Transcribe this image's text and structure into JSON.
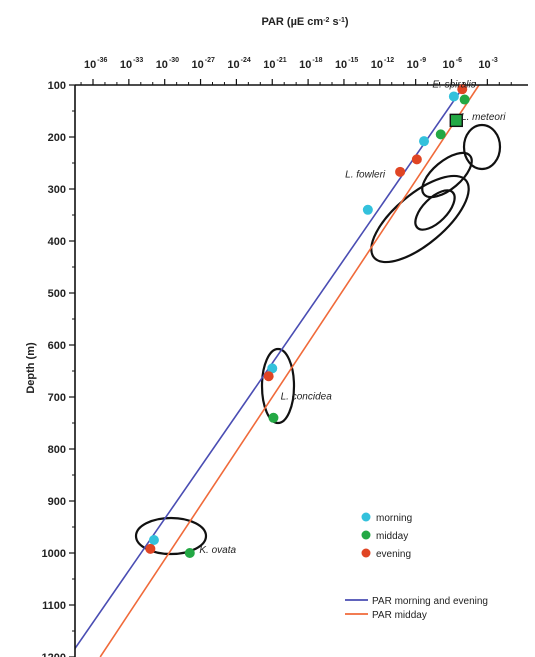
{
  "chart_data": {
    "type": "scatter",
    "x_axis": {
      "title": "PAR (µE cm⁻² s⁻¹)",
      "scale": "log",
      "position": "top",
      "range_exponent": [
        -38,
        -1
      ],
      "ticks": [
        {
          "base": "10",
          "exp": "-36",
          "e": -36
        },
        {
          "base": "10",
          "exp": "-33",
          "e": -33
        },
        {
          "base": "10",
          "exp": "-30",
          "e": -30
        },
        {
          "base": "10",
          "exp": "-27",
          "e": -27
        },
        {
          "base": "10",
          "exp": "-24",
          "e": -24
        },
        {
          "base": "10",
          "exp": "-21",
          "e": -21
        },
        {
          "base": "10",
          "exp": "-18",
          "e": -18
        },
        {
          "base": "10",
          "exp": "-15",
          "e": -15
        },
        {
          "base": "10",
          "exp": "-12",
          "e": -12
        },
        {
          "base": "10",
          "exp": "-9",
          "e": -9
        },
        {
          "base": "10",
          "exp": "-6",
          "e": -6
        },
        {
          "base": "10",
          "exp": "-3",
          "e": -3
        }
      ]
    },
    "y_axis": {
      "title": "Depth (m)",
      "inverted": true,
      "range": [
        100,
        1200
      ],
      "ticks": [
        {
          "label": "100",
          "v": 100
        },
        {
          "label": "200",
          "v": 200
        },
        {
          "label": "300",
          "v": 300
        },
        {
          "label": "400",
          "v": 400
        },
        {
          "label": "500",
          "v": 500
        },
        {
          "label": "600",
          "v": 600
        },
        {
          "label": "700",
          "v": 700
        },
        {
          "label": "800",
          "v": 800
        },
        {
          "label": "900",
          "v": 900
        },
        {
          "label": "1000",
          "v": 1000
        },
        {
          "label": "1100",
          "v": 1100
        },
        {
          "label": "1200",
          "v": 1200
        }
      ]
    },
    "lines": [
      {
        "name": "PAR  morning and evening",
        "color": "#4a4db3",
        "points": [
          [
            -4.9,
            100
          ],
          [
            -38,
            1200
          ]
        ]
      },
      {
        "name": "PAR  midday",
        "color": "#f06a3a",
        "points": [
          [
            -3.7,
            100
          ],
          [
            -35.4,
            1200
          ]
        ]
      }
    ],
    "series": [
      {
        "name": "morning",
        "color": "#33c1dc",
        "points": [
          {
            "log_par": -5.8,
            "depth": 122
          },
          {
            "log_par": -8.3,
            "depth": 208
          },
          {
            "log_par": -13.0,
            "depth": 340
          },
          {
            "log_par": -21.0,
            "depth": 645
          },
          {
            "log_par": -30.9,
            "depth": 975
          }
        ]
      },
      {
        "name": "midday",
        "color": "#23a844",
        "points": [
          {
            "log_par": -4.9,
            "depth": 128
          },
          {
            "log_par": -5.6,
            "depth": 168,
            "marker": "square"
          },
          {
            "log_par": -6.9,
            "depth": 195
          },
          {
            "log_par": -20.9,
            "depth": 740
          },
          {
            "log_par": -27.9,
            "depth": 1000
          }
        ]
      },
      {
        "name": "evening",
        "color": "#e04524",
        "points": [
          {
            "log_par": -5.1,
            "depth": 108
          },
          {
            "log_par": -8.9,
            "depth": 243
          },
          {
            "log_par": -10.3,
            "depth": 267
          },
          {
            "log_par": -21.3,
            "depth": 660
          },
          {
            "log_par": -31.2,
            "depth": 992
          }
        ]
      }
    ],
    "annotations": [
      {
        "text": "E. spiralis",
        "log_par": -7.6,
        "depth": 97
      },
      {
        "text": "L. meteori",
        "log_par": -5.2,
        "depth": 160
      },
      {
        "text": "L. fowleri",
        "log_par": -14.9,
        "depth": 270
      },
      {
        "text": "L. concidea",
        "log_par": -20.3,
        "depth": 697
      },
      {
        "text": "K. ovata",
        "log_par": -27.1,
        "depth": 992
      }
    ],
    "legend": {
      "placement": "bottom-right",
      "markers": [
        {
          "label": "morning",
          "color": "#33c1dc"
        },
        {
          "label": "midday",
          "color": "#23a844"
        },
        {
          "label": "evening",
          "color": "#e04524"
        }
      ],
      "lines": [
        {
          "label": "PAR  morning and evening",
          "color": "#4a4db3"
        },
        {
          "label": "PAR  midday",
          "color": "#f06a3a"
        }
      ]
    }
  }
}
